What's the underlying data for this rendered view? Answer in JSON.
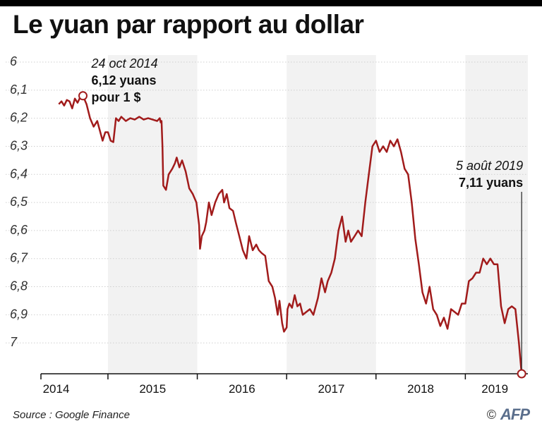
{
  "title": "Le yuan par rapport au dollar",
  "source": "Source : Google Finance",
  "credit": {
    "copyright_symbol": "©",
    "logo_text": "AFP"
  },
  "colors": {
    "line": "#a11b1b",
    "band": "#f2f2f2",
    "grid": "#cfcfcf",
    "axis": "#111111",
    "text": "#111111"
  },
  "chart_data": {
    "type": "line",
    "title": "Le yuan par rapport au dollar",
    "xlabel": "",
    "ylabel": "",
    "y_inverted": true,
    "ylim": [
      6.0,
      7.11
    ],
    "yticks": [
      6.0,
      6.1,
      6.2,
      6.3,
      6.4,
      6.5,
      6.6,
      6.7,
      6.8,
      6.9,
      7.0
    ],
    "ytick_labels": [
      "6",
      "6,1",
      "6,2",
      "6,3",
      "6,4",
      "6,5",
      "6,6",
      "6,7",
      "6,8",
      "6,9",
      "7"
    ],
    "xlim": [
      2014.25,
      2019.7
    ],
    "year_labels": [
      {
        "label": "2014",
        "x": 2014.42
      },
      {
        "label": "2015",
        "x": 2015.5
      },
      {
        "label": "2016",
        "x": 2016.5
      },
      {
        "label": "2017",
        "x": 2017.5
      },
      {
        "label": "2018",
        "x": 2018.5
      },
      {
        "label": "2019",
        "x": 2019.33
      }
    ],
    "shaded_years": [
      [
        2015.0,
        2016.0
      ],
      [
        2017.0,
        2018.0
      ],
      [
        2019.0,
        2019.7
      ]
    ],
    "grid": true,
    "points": [
      [
        2014.45,
        6.15
      ],
      [
        2014.48,
        6.14
      ],
      [
        2014.51,
        6.155
      ],
      [
        2014.54,
        6.135
      ],
      [
        2014.57,
        6.14
      ],
      [
        2014.6,
        6.165
      ],
      [
        2014.63,
        6.13
      ],
      [
        2014.66,
        6.145
      ],
      [
        2014.69,
        6.125
      ],
      [
        2014.72,
        6.12
      ],
      [
        2014.76,
        6.15
      ],
      [
        2014.8,
        6.2
      ],
      [
        2014.84,
        6.23
      ],
      [
        2014.88,
        6.21
      ],
      [
        2014.91,
        6.245
      ],
      [
        2014.94,
        6.28
      ],
      [
        2014.97,
        6.25
      ],
      [
        2015.0,
        6.25
      ],
      [
        2015.03,
        6.28
      ],
      [
        2015.06,
        6.285
      ],
      [
        2015.09,
        6.2
      ],
      [
        2015.12,
        6.21
      ],
      [
        2015.15,
        6.195
      ],
      [
        2015.2,
        6.21
      ],
      [
        2015.25,
        6.2
      ],
      [
        2015.3,
        6.205
      ],
      [
        2015.35,
        6.195
      ],
      [
        2015.4,
        6.205
      ],
      [
        2015.45,
        6.2
      ],
      [
        2015.5,
        6.205
      ],
      [
        2015.55,
        6.21
      ],
      [
        2015.58,
        6.2
      ],
      [
        2015.59,
        6.215
      ],
      [
        2015.6,
        6.21
      ],
      [
        2015.61,
        6.3
      ],
      [
        2015.62,
        6.44
      ],
      [
        2015.65,
        6.455
      ],
      [
        2015.68,
        6.4
      ],
      [
        2015.72,
        6.38
      ],
      [
        2015.75,
        6.36
      ],
      [
        2015.77,
        6.34
      ],
      [
        2015.8,
        6.375
      ],
      [
        2015.83,
        6.35
      ],
      [
        2015.87,
        6.39
      ],
      [
        2015.91,
        6.45
      ],
      [
        2015.95,
        6.47
      ],
      [
        2015.99,
        6.5
      ],
      [
        2016.02,
        6.58
      ],
      [
        2016.03,
        6.665
      ],
      [
        2016.05,
        6.62
      ],
      [
        2016.08,
        6.6
      ],
      [
        2016.1,
        6.57
      ],
      [
        2016.13,
        6.5
      ],
      [
        2016.16,
        6.545
      ],
      [
        2016.2,
        6.5
      ],
      [
        2016.24,
        6.47
      ],
      [
        2016.28,
        6.455
      ],
      [
        2016.3,
        6.5
      ],
      [
        2016.33,
        6.47
      ],
      [
        2016.36,
        6.52
      ],
      [
        2016.4,
        6.53
      ],
      [
        2016.43,
        6.57
      ],
      [
        2016.47,
        6.62
      ],
      [
        2016.51,
        6.67
      ],
      [
        2016.55,
        6.7
      ],
      [
        2016.58,
        6.62
      ],
      [
        2016.62,
        6.67
      ],
      [
        2016.66,
        6.65
      ],
      [
        2016.69,
        6.67
      ],
      [
        2016.72,
        6.68
      ],
      [
        2016.76,
        6.69
      ],
      [
        2016.8,
        6.78
      ],
      [
        2016.84,
        6.8
      ],
      [
        2016.87,
        6.84
      ],
      [
        2016.9,
        6.9
      ],
      [
        2016.92,
        6.85
      ],
      [
        2016.95,
        6.93
      ],
      [
        2016.97,
        6.96
      ],
      [
        2017.0,
        6.945
      ],
      [
        2017.01,
        6.88
      ],
      [
        2017.03,
        6.86
      ],
      [
        2017.06,
        6.875
      ],
      [
        2017.09,
        6.83
      ],
      [
        2017.12,
        6.87
      ],
      [
        2017.15,
        6.86
      ],
      [
        2017.18,
        6.9
      ],
      [
        2017.22,
        6.89
      ],
      [
        2017.26,
        6.88
      ],
      [
        2017.3,
        6.9
      ],
      [
        2017.35,
        6.84
      ],
      [
        2017.39,
        6.77
      ],
      [
        2017.43,
        6.82
      ],
      [
        2017.46,
        6.78
      ],
      [
        2017.5,
        6.75
      ],
      [
        2017.54,
        6.7
      ],
      [
        2017.58,
        6.6
      ],
      [
        2017.62,
        6.55
      ],
      [
        2017.66,
        6.64
      ],
      [
        2017.69,
        6.6
      ],
      [
        2017.72,
        6.64
      ],
      [
        2017.76,
        6.62
      ],
      [
        2017.8,
        6.6
      ],
      [
        2017.84,
        6.62
      ],
      [
        2017.88,
        6.5
      ],
      [
        2017.92,
        6.4
      ],
      [
        2017.96,
        6.3
      ],
      [
        2018.0,
        6.28
      ],
      [
        2018.04,
        6.32
      ],
      [
        2018.08,
        6.3
      ],
      [
        2018.12,
        6.32
      ],
      [
        2018.16,
        6.28
      ],
      [
        2018.2,
        6.3
      ],
      [
        2018.24,
        6.275
      ],
      [
        2018.28,
        6.32
      ],
      [
        2018.32,
        6.38
      ],
      [
        2018.36,
        6.4
      ],
      [
        2018.4,
        6.5
      ],
      [
        2018.44,
        6.63
      ],
      [
        2018.48,
        6.72
      ],
      [
        2018.52,
        6.82
      ],
      [
        2018.56,
        6.86
      ],
      [
        2018.6,
        6.8
      ],
      [
        2018.64,
        6.88
      ],
      [
        2018.68,
        6.9
      ],
      [
        2018.72,
        6.94
      ],
      [
        2018.76,
        6.91
      ],
      [
        2018.8,
        6.95
      ],
      [
        2018.84,
        6.88
      ],
      [
        2018.88,
        6.89
      ],
      [
        2018.92,
        6.9
      ],
      [
        2018.96,
        6.86
      ],
      [
        2019.0,
        6.86
      ],
      [
        2019.04,
        6.78
      ],
      [
        2019.08,
        6.77
      ],
      [
        2019.12,
        6.75
      ],
      [
        2019.16,
        6.75
      ],
      [
        2019.2,
        6.7
      ],
      [
        2019.24,
        6.72
      ],
      [
        2019.28,
        6.7
      ],
      [
        2019.32,
        6.72
      ],
      [
        2019.36,
        6.72
      ],
      [
        2019.4,
        6.87
      ],
      [
        2019.44,
        6.93
      ],
      [
        2019.48,
        6.88
      ],
      [
        2019.52,
        6.87
      ],
      [
        2019.56,
        6.88
      ],
      [
        2019.6,
        7.0
      ],
      [
        2019.63,
        7.11
      ]
    ],
    "annotations": [
      {
        "date": "24 oct 2014",
        "value_text": "6,12 yuans",
        "extra_text": "pour 1 $",
        "x": 2014.72,
        "y": 6.12
      },
      {
        "date": "5 août 2019",
        "value_text": "7,11 yuans",
        "extra_text": "",
        "x": 2019.63,
        "y": 7.11
      }
    ]
  }
}
